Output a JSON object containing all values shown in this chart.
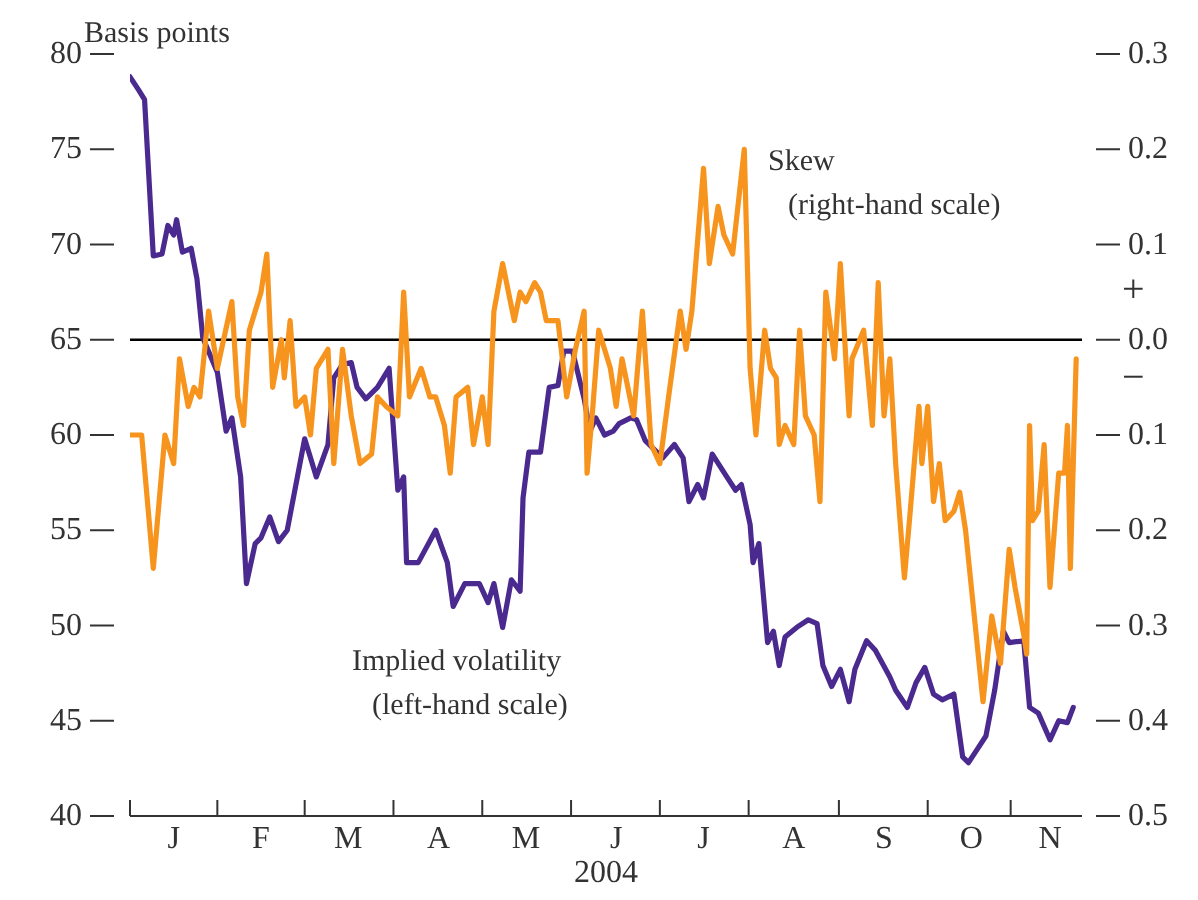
{
  "chart_data": {
    "type": "line",
    "ylabel": "Basis points",
    "xlabel": "2004",
    "legend": false,
    "grid": false,
    "marker": "none",
    "line_style": "solid",
    "categories": [
      null,
      null,
      null,
      null,
      null,
      null,
      null,
      null,
      null,
      null,
      null,
      null,
      null,
      null,
      null,
      "J",
      null,
      null,
      null,
      null,
      null,
      null,
      null,
      null,
      null,
      null,
      null,
      null,
      null,
      null,
      null,
      null,
      null,
      null,
      null,
      null,
      null,
      null,
      null,
      null,
      null,
      null,
      null,
      null,
      null,
      "F",
      null,
      null,
      null,
      null,
      null,
      null,
      null,
      null,
      null,
      null,
      null,
      null,
      null,
      null,
      null,
      null,
      null,
      null,
      null,
      null,
      null,
      null,
      null,
      null,
      null,
      null,
      null,
      null,
      null,
      "M",
      null,
      null,
      null,
      null,
      null,
      null,
      null,
      null,
      null,
      null,
      null,
      null,
      null,
      null,
      null,
      null,
      null,
      null,
      null,
      null,
      null,
      null,
      null,
      null,
      null,
      null,
      null,
      null,
      null,
      null,
      "A",
      null,
      null,
      null,
      null,
      null,
      null,
      null,
      null,
      null,
      null,
      null,
      null,
      null,
      null,
      null,
      null,
      null,
      null,
      null,
      null,
      null,
      null,
      null,
      null,
      null,
      null,
      null,
      null,
      null,
      "M",
      null,
      null,
      null,
      null,
      null,
      null,
      null,
      null,
      null,
      null,
      null,
      null,
      null,
      null,
      null,
      null,
      null,
      null,
      null,
      null,
      null,
      null,
      null,
      null,
      null,
      null,
      null,
      null,
      null,
      null,
      "J",
      null,
      null,
      null,
      null,
      null,
      null,
      null,
      null,
      null,
      null,
      null,
      null,
      null,
      null,
      null,
      null,
      null,
      null,
      null,
      null,
      null,
      null,
      null,
      null,
      null,
      null,
      null,
      null,
      null,
      "J",
      null,
      null,
      null,
      null,
      null,
      null,
      null,
      null,
      null,
      null,
      null,
      null,
      null,
      null,
      null,
      null,
      null,
      null,
      null,
      null,
      null,
      null,
      null,
      null,
      null,
      null,
      null,
      null,
      null,
      null,
      "A",
      null,
      null,
      null,
      null,
      null,
      null,
      null,
      null,
      null,
      null,
      null,
      null,
      null,
      null,
      null,
      null,
      null,
      null,
      null,
      null,
      null,
      null,
      null,
      null,
      null,
      null,
      null,
      null,
      null,
      null,
      "S",
      null,
      null,
      null,
      null,
      null,
      null,
      null,
      null,
      null,
      null,
      null,
      null,
      null,
      null,
      null,
      null,
      null,
      null,
      null,
      null,
      null,
      null,
      null,
      null,
      null,
      null,
      null,
      null,
      null,
      "O",
      null,
      null,
      null,
      null,
      null,
      null,
      null,
      null,
      null,
      null,
      null,
      null,
      null,
      null,
      null,
      null,
      null,
      null,
      null,
      null,
      null,
      null,
      null,
      null,
      null,
      null,
      "N",
      null,
      null,
      null,
      null,
      null,
      null,
      null,
      null,
      null,
      null,
      null
    ],
    "ylim": [
      40,
      80
    ],
    "yticks": [
      40,
      45,
      50,
      55,
      60,
      65,
      70,
      75,
      80
    ],
    "y2lim": [
      -0.5,
      0.3
    ],
    "y2ticks": [
      {
        "value": -0.5,
        "label": "0.5"
      },
      {
        "value": -0.4,
        "label": "0.4"
      },
      {
        "value": -0.3,
        "label": "0.3"
      },
      {
        "value": -0.2,
        "label": "0.2"
      },
      {
        "value": -0.1,
        "label": "0.1"
      },
      {
        "value": 0,
        "label": "0.0"
      },
      {
        "value": 0.1,
        "label": "0.1"
      },
      {
        "value": 0.2,
        "label": "0.2"
      },
      {
        "value": 0.3,
        "label": "0.3"
      }
    ],
    "ref_lines": [
      {
        "axis": "y2",
        "value": 0,
        "color": "#000000"
      }
    ],
    "annotations": [
      "+",
      "−"
    ],
    "series": [
      {
        "name": "Implied volatility\n(left-hand scale)",
        "color": "#4b2a8f",
        "axis": "y",
        "values": [
          78.8,
          null,
          null,
          78.1,
          null,
          77.6,
          null,
          null,
          69.4,
          null,
          null,
          69.5,
          null,
          71.0,
          null,
          70.5,
          71.3,
          null,
          69.6,
          null,
          null,
          69.8,
          null,
          68.2,
          null,
          65.1,
          null,
          null,
          null,
          null,
          63.3,
          null,
          null,
          60.2,
          null,
          60.9,
          null,
          null,
          57.8,
          null,
          52.2,
          null,
          null,
          54.3,
          null,
          54.6,
          null,
          null,
          55.7,
          null,
          null,
          54.4,
          null,
          null,
          55.0,
          null,
          null,
          57.4,
          null,
          null,
          59.8,
          null,
          58.8,
          null,
          57.8,
          null,
          null,
          null,
          59.5,
          null,
          63.0,
          null,
          null,
          63.7,
          null,
          null,
          63.8,
          null,
          62.5,
          null,
          null,
          61.9,
          null,
          null,
          null,
          62.5,
          null,
          null,
          null,
          63.5,
          null,
          null,
          57.1,
          null,
          57.8,
          53.3,
          null,
          null,
          null,
          53.3,
          null,
          null,
          null,
          null,
          null,
          55.0,
          null,
          null,
          null,
          53.3,
          null,
          51.0,
          null,
          null,
          null,
          52.2,
          null,
          null,
          null,
          null,
          52.2,
          null,
          null,
          51.2,
          null,
          52.2,
          null,
          null,
          49.9,
          null,
          null,
          52.4,
          null,
          null,
          51.8,
          56.7,
          null,
          59.1,
          null,
          null,
          null,
          59.1,
          null,
          null,
          62.5,
          null,
          null,
          62.6,
          null,
          64.4,
          null,
          null,
          64.4,
          null,
          null,
          null,
          61.9,
          null,
          60.2,
          null,
          60.9,
          null,
          null,
          60.0,
          null,
          null,
          60.2,
          null,
          60.6,
          null,
          null,
          null,
          60.9,
          null,
          60.8,
          null,
          null,
          59.7,
          null,
          null,
          null,
          59.1,
          null,
          58.8,
          null,
          null,
          null,
          59.5,
          null,
          null,
          58.8,
          null,
          56.5,
          null,
          null,
          57.4,
          null,
          56.7,
          null,
          null,
          59.0,
          null,
          null,
          null,
          null,
          57.8,
          null,
          null,
          57.1,
          null,
          57.4,
          null,
          null,
          55.3,
          53.3,
          null,
          54.3,
          null,
          null,
          49.1,
          null,
          49.7,
          null,
          47.9,
          null,
          49.4,
          null,
          null,
          null,
          49.9,
          null,
          null,
          null,
          50.3,
          null,
          null,
          50.1,
          null,
          47.9,
          null,
          null,
          46.8,
          null,
          null,
          47.7,
          null,
          null,
          46.0,
          null,
          47.7,
          null,
          null,
          null,
          49.2,
          null,
          null,
          48.7,
          null,
          null,
          null,
          null,
          47.3,
          null,
          46.6,
          null,
          null,
          null,
          45.7,
          null,
          null,
          47.0,
          null,
          null,
          47.8,
          null,
          null,
          46.4,
          null,
          null,
          46.1,
          null,
          null,
          null,
          46.4,
          null,
          null,
          43.1,
          null,
          42.8,
          null,
          null,
          43.5,
          null,
          null,
          44.2,
          null,
          null,
          46.6,
          null,
          null,
          49.7,
          null,
          49.1,
          null,
          null,
          null,
          null,
          49.2,
          null,
          45.7,
          null,
          null,
          45.4,
          null,
          null,
          null,
          44.0,
          null,
          null,
          45.0,
          null,
          null,
          44.9,
          null,
          45.7,
          null,
          null,
          null
        ]
      },
      {
        "name": "Skew\n(right-hand scale)",
        "color": "#f7941d",
        "axis": "y2",
        "values": [
          -0.1,
          null,
          null,
          null,
          -0.1,
          null,
          null,
          null,
          -0.24,
          null,
          null,
          null,
          -0.1,
          null,
          null,
          -0.13,
          null,
          -0.02,
          null,
          null,
          -0.07,
          null,
          -0.05,
          null,
          -0.06,
          null,
          null,
          0.03,
          null,
          null,
          -0.03,
          null,
          null,
          null,
          null,
          0.04,
          null,
          -0.06,
          null,
          -0.09,
          null,
          0.01,
          null,
          null,
          null,
          0.05,
          null,
          0.09,
          null,
          -0.05,
          null,
          null,
          0.0,
          -0.04,
          null,
          0.02,
          null,
          -0.07,
          null,
          null,
          -0.06,
          null,
          -0.1,
          null,
          -0.03,
          null,
          null,
          null,
          -0.01,
          null,
          -0.13,
          null,
          null,
          -0.01,
          null,
          null,
          -0.08,
          null,
          null,
          -0.13,
          null,
          null,
          null,
          -0.12,
          null,
          -0.06,
          null,
          null,
          -0.07,
          null,
          null,
          null,
          -0.08,
          null,
          0.05,
          null,
          -0.06,
          null,
          null,
          null,
          -0.03,
          null,
          null,
          -0.06,
          null,
          -0.06,
          null,
          null,
          -0.09,
          null,
          -0.14,
          null,
          -0.06,
          null,
          null,
          null,
          -0.05,
          null,
          -0.11,
          null,
          null,
          -0.06,
          null,
          -0.11,
          null,
          0.03,
          null,
          null,
          0.08,
          null,
          null,
          null,
          0.02,
          null,
          0.05,
          null,
          0.04,
          null,
          null,
          0.06,
          null,
          0.05,
          null,
          0.02,
          null,
          null,
          null,
          0.02,
          null,
          null,
          -0.06,
          null,
          null,
          -0.01,
          null,
          null,
          0.03,
          -0.14,
          null,
          -0.07,
          null,
          0.01,
          null,
          null,
          null,
          -0.03,
          null,
          -0.07,
          null,
          -0.02,
          null,
          null,
          null,
          -0.08,
          null,
          null,
          0.03,
          null,
          null,
          -0.11,
          null,
          null,
          -0.13,
          null,
          null,
          -0.06,
          null,
          null,
          null,
          0.03,
          null,
          -0.01,
          null,
          0.03,
          null,
          null,
          null,
          0.18,
          null,
          0.08,
          null,
          null,
          0.14,
          null,
          0.11,
          null,
          null,
          0.09,
          null,
          null,
          null,
          0.2,
          null,
          -0.03,
          null,
          -0.1,
          null,
          null,
          0.01,
          null,
          -0.03,
          null,
          -0.04,
          -0.11,
          null,
          -0.09,
          null,
          null,
          -0.11,
          null,
          0.01,
          null,
          -0.08,
          null,
          null,
          -0.1,
          null,
          -0.17,
          null,
          0.05,
          null,
          null,
          -0.02,
          null,
          0.08,
          null,
          null,
          -0.08,
          -0.02,
          null,
          null,
          null,
          0.01,
          null,
          null,
          -0.09,
          null,
          0.06,
          null,
          -0.08,
          null,
          -0.02,
          null,
          -0.13,
          null,
          null,
          -0.25,
          null,
          -0.18,
          null,
          null,
          -0.07,
          -0.13,
          null,
          -0.07,
          null,
          -0.17,
          null,
          -0.13,
          null,
          -0.19,
          null,
          null,
          -0.18,
          null,
          -0.16,
          null,
          -0.2,
          null,
          null,
          -0.29,
          null,
          null,
          -0.38,
          null,
          null,
          -0.29,
          null,
          null,
          -0.34,
          null,
          null,
          -0.22,
          null,
          -0.26,
          null,
          null,
          -0.31,
          -0.33,
          -0.09,
          -0.19,
          null,
          -0.18,
          null,
          -0.11,
          null,
          -0.26,
          null,
          null,
          -0.14,
          null,
          -0.14,
          -0.09,
          -0.24,
          null,
          -0.02,
          null,
          null
        ]
      }
    ]
  }
}
